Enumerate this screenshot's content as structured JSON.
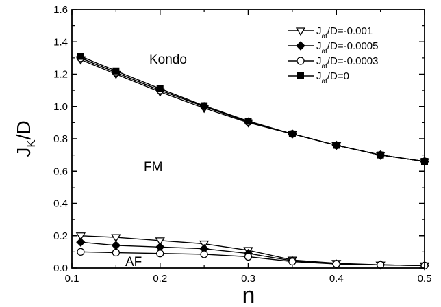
{
  "chart_data": {
    "type": "line",
    "xlabel": "n",
    "ylabel_main": "J",
    "ylabel_sub": "K",
    "ylabel_tail": "/D",
    "xlim": [
      0.1,
      0.5
    ],
    "ylim": [
      0.0,
      1.6
    ],
    "x_ticks": [
      0.1,
      0.2,
      0.3,
      0.4,
      0.5
    ],
    "x_tick_labels": [
      "0.1",
      "0.2",
      "0.3",
      "0.4",
      "0.5"
    ],
    "y_ticks": [
      0.0,
      0.2,
      0.4,
      0.6,
      0.8,
      1.0,
      1.2,
      1.4,
      1.6
    ],
    "y_tick_labels": [
      "0.0",
      "0.2",
      "0.4",
      "0.6",
      "0.8",
      "1.0",
      "1.2",
      "1.4",
      "1.6"
    ],
    "legend_position": "top-right",
    "annotations": [
      "Kondo",
      "FM",
      "AF"
    ],
    "x": [
      0.11,
      0.15,
      0.2,
      0.25,
      0.3,
      0.35,
      0.4,
      0.45,
      0.5
    ],
    "series": [
      {
        "name": "J_af/D=-0.001",
        "legend_main": "J",
        "legend_sub": "af",
        "legend_tail": "/D=-0.001",
        "marker": "triangle-down-open",
        "upper": [
          1.29,
          1.2,
          1.09,
          0.99,
          0.9,
          0.83,
          0.76,
          0.7,
          0.66
        ],
        "lower": [
          0.2,
          0.19,
          0.17,
          0.15,
          0.11,
          0.05,
          0.03,
          0.02,
          0.015
        ]
      },
      {
        "name": "J_af/D=-0.0005",
        "legend_main": "J",
        "legend_sub": "af",
        "legend_tail": "/D=-0.0005",
        "marker": "diamond-filled",
        "upper": [
          1.3,
          1.21,
          1.1,
          1.0,
          0.905,
          0.83,
          0.76,
          0.7,
          0.66
        ],
        "lower": [
          0.16,
          0.14,
          0.13,
          0.12,
          0.09,
          0.045,
          0.025,
          0.02,
          0.015
        ]
      },
      {
        "name": "J_af/D=-0.0003",
        "legend_main": "J",
        "legend_sub": "af",
        "legend_tail": "/D=-0.0003",
        "marker": "circle-open",
        "upper": [
          1.3,
          1.21,
          1.1,
          1.0,
          0.905,
          0.83,
          0.76,
          0.7,
          0.66
        ],
        "lower": [
          0.1,
          0.095,
          0.09,
          0.085,
          0.07,
          0.04,
          0.025,
          0.02,
          0.015
        ]
      },
      {
        "name": "J_af/D=0",
        "legend_main": "J",
        "legend_sub": "af",
        "legend_tail": "/D=0",
        "marker": "square-filled",
        "upper": [
          1.31,
          1.22,
          1.11,
          1.005,
          0.91,
          0.83,
          0.76,
          0.7,
          0.66
        ],
        "lower": []
      }
    ]
  }
}
